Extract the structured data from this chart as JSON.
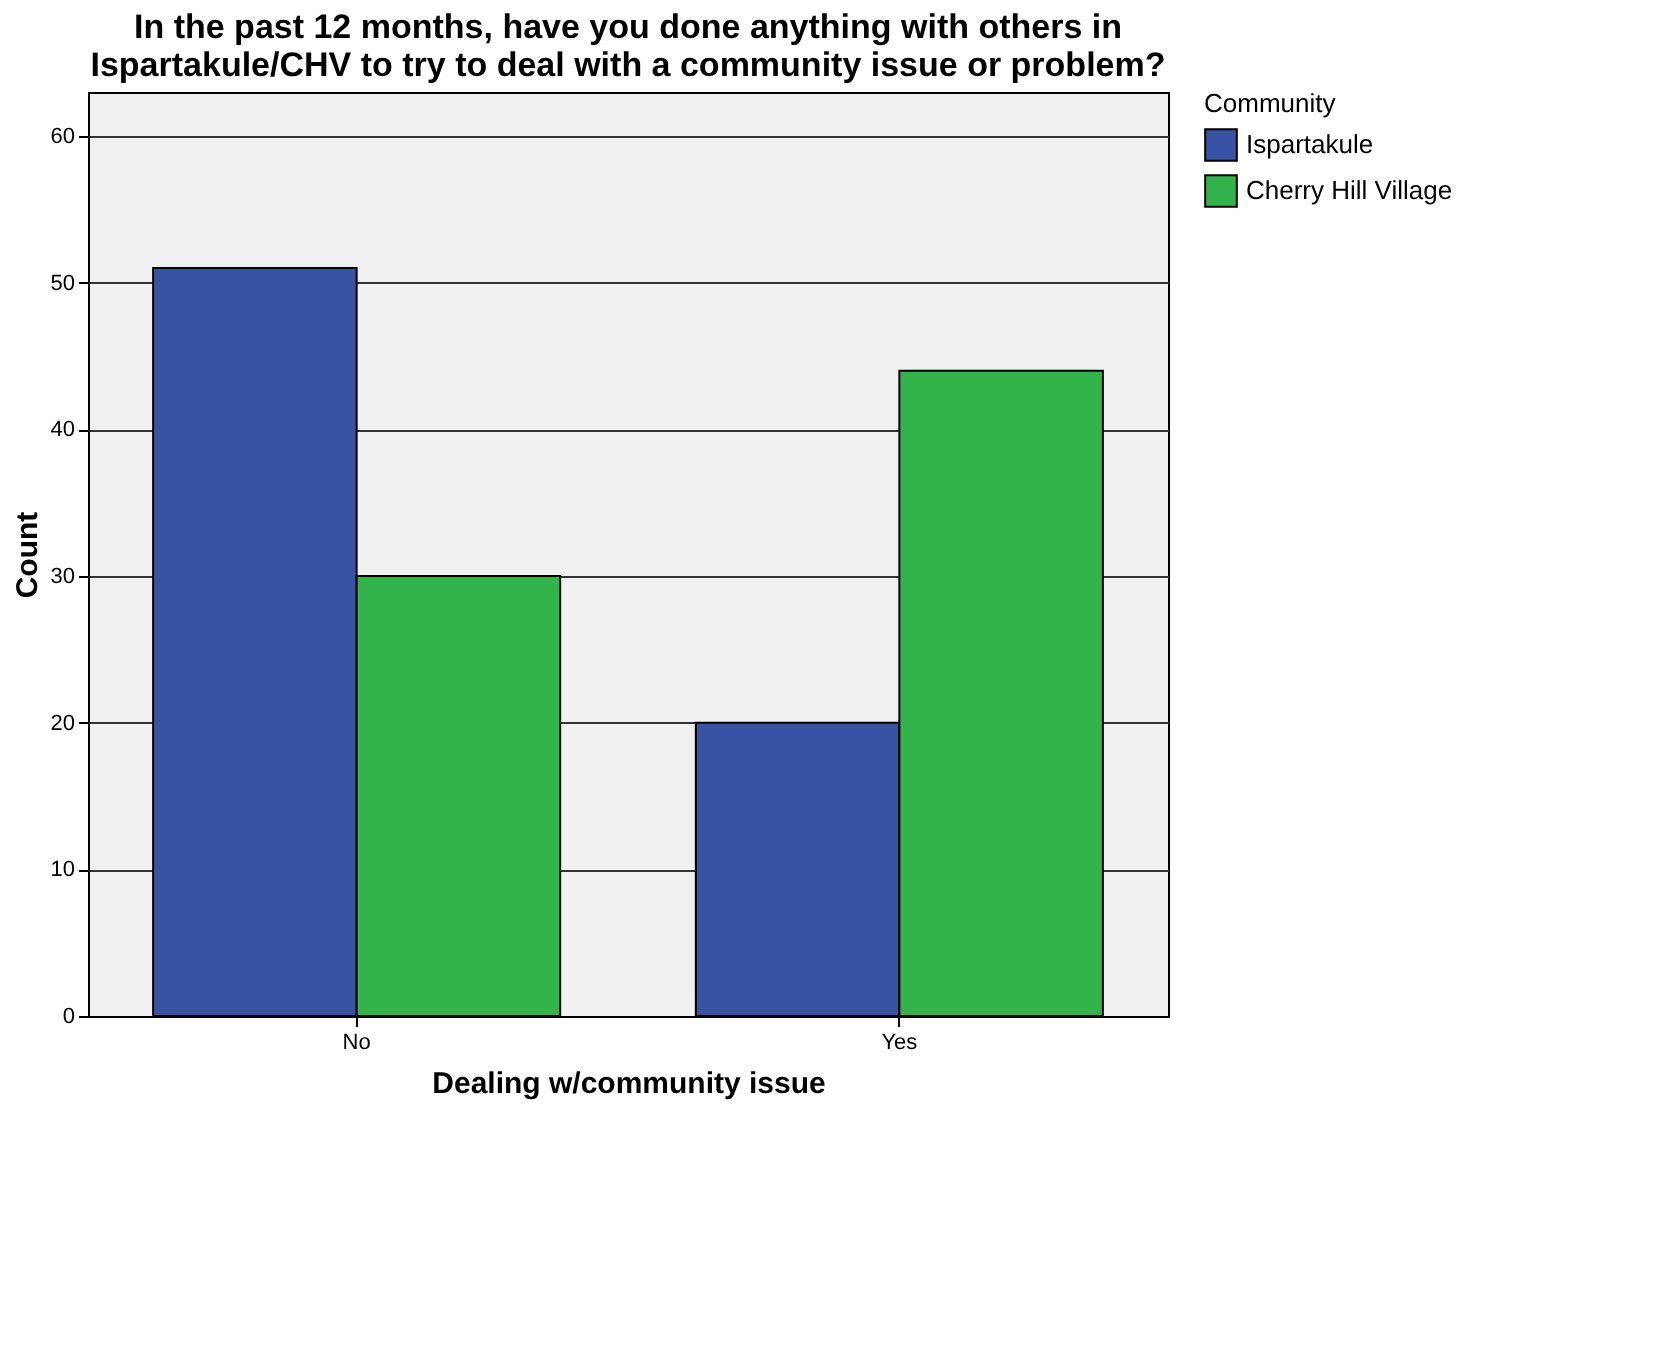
{
  "chart_data": {
    "type": "bar",
    "title": [
      "In the past 12 months, have you done anything with others in",
      "Ispartakule/CHV to try to deal with a community issue or problem?"
    ],
    "xlabel": "Dealing w/community issue",
    "ylabel": "Count",
    "legend_title": "Community",
    "categories": [
      "No",
      "Yes"
    ],
    "series": [
      {
        "name": "Ispartakule",
        "color": "#3953a4",
        "values": [
          51,
          20
        ]
      },
      {
        "name": "Cherry Hill Village",
        "color": "#33b44a",
        "values": [
          30,
          44
        ]
      }
    ],
    "ylim": [
      0,
      63
    ],
    "yticks": [
      0,
      10,
      20,
      30,
      40,
      50,
      60
    ],
    "grid": "y",
    "legend": "right"
  }
}
